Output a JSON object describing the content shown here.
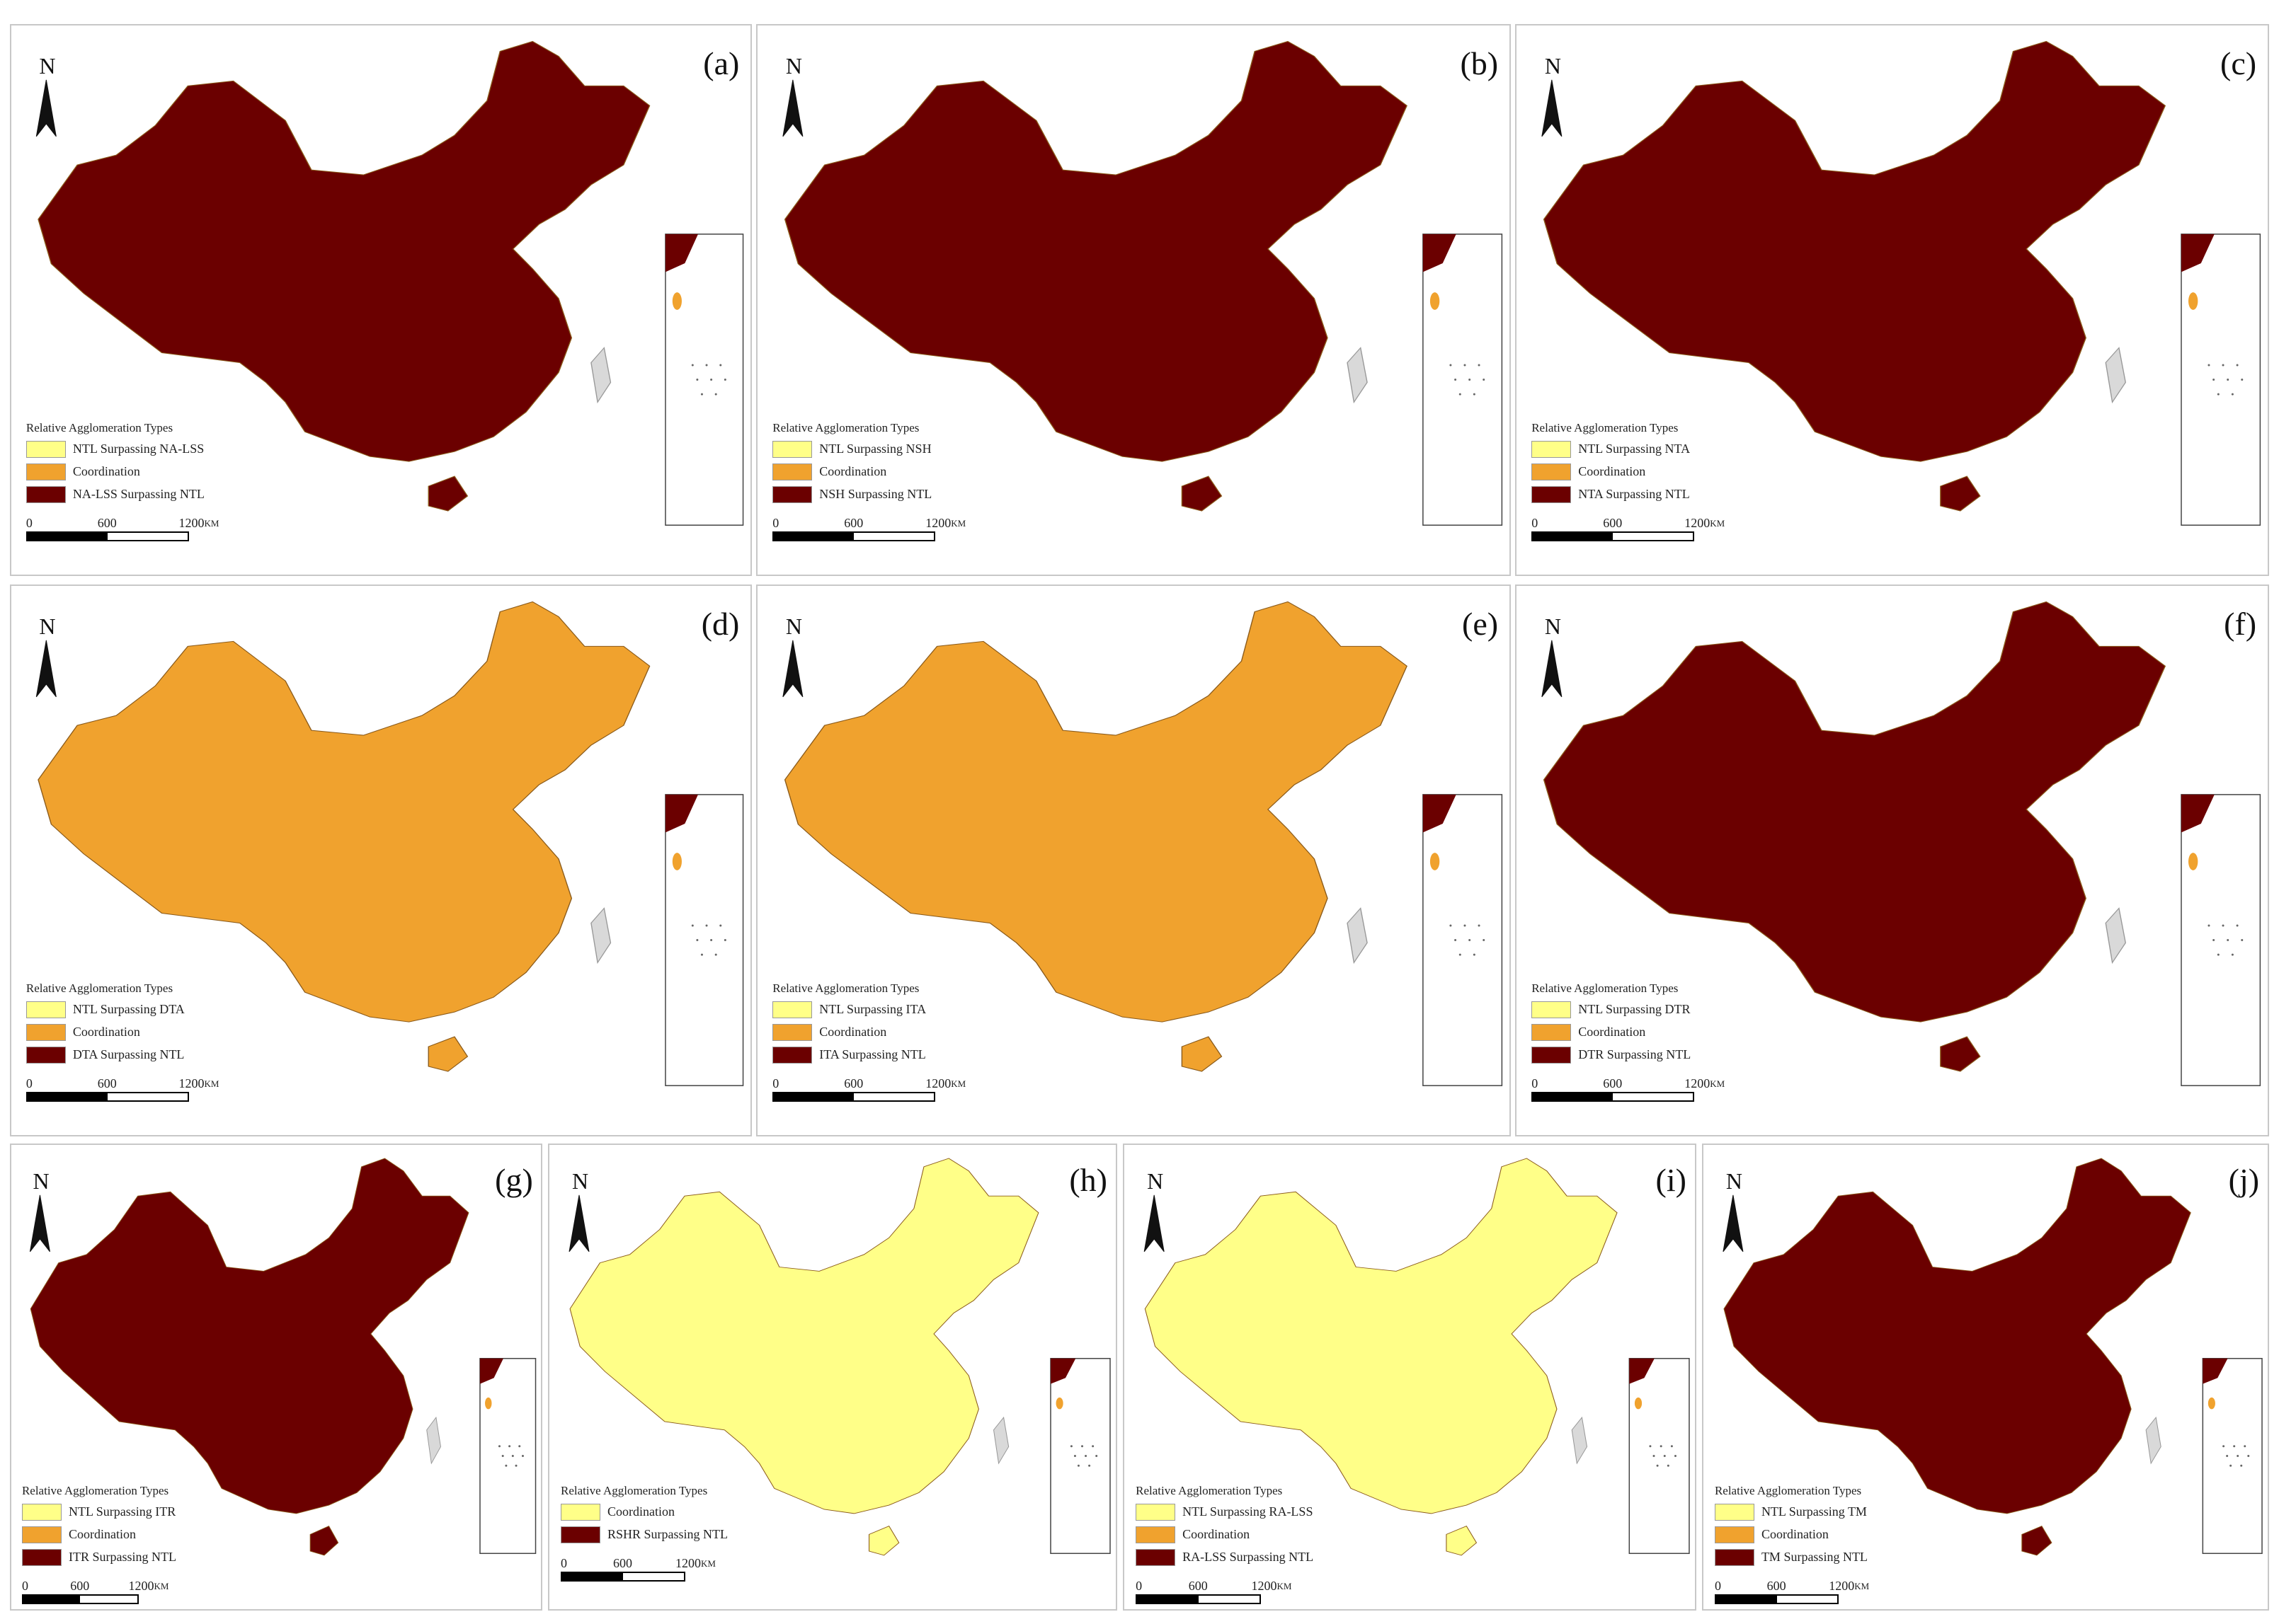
{
  "colors": {
    "light_yellow": "#FFFF88",
    "orange": "#F0A22E",
    "dark_red": "#6B0000",
    "inset_red": "#6B0000"
  },
  "north_arrow_label": "N",
  "scale_bar": {
    "tick_labels": [
      "0",
      "600",
      "1200"
    ],
    "unit": "KM"
  },
  "legend_title": "Relative Agglomeration Types",
  "panels": [
    {
      "letter": "(a)",
      "map_color": "dark_red",
      "legend": [
        {
          "label": "NTL Surpassing NA-LSS",
          "color": "light_yellow"
        },
        {
          "label": "Coordination",
          "color": "orange"
        },
        {
          "label": "NA-LSS Surpassing NTL",
          "color": "dark_red"
        }
      ]
    },
    {
      "letter": "(b)",
      "map_color": "dark_red",
      "legend": [
        {
          "label": "NTL Surpassing NSH",
          "color": "light_yellow"
        },
        {
          "label": "Coordination",
          "color": "orange"
        },
        {
          "label": "NSH Surpassing NTL",
          "color": "dark_red"
        }
      ]
    },
    {
      "letter": "(c)",
      "map_color": "dark_red",
      "legend": [
        {
          "label": "NTL Surpassing NTA",
          "color": "light_yellow"
        },
        {
          "label": "Coordination",
          "color": "orange"
        },
        {
          "label": "NTA Surpassing NTL",
          "color": "dark_red"
        }
      ]
    },
    {
      "letter": "(d)",
      "map_color": "orange",
      "legend": [
        {
          "label": "NTL Surpassing DTA",
          "color": "light_yellow"
        },
        {
          "label": "Coordination",
          "color": "orange"
        },
        {
          "label": "DTA Surpassing NTL",
          "color": "dark_red"
        }
      ]
    },
    {
      "letter": "(e)",
      "map_color": "orange",
      "legend": [
        {
          "label": "NTL Surpassing ITA",
          "color": "light_yellow"
        },
        {
          "label": "Coordination",
          "color": "orange"
        },
        {
          "label": "ITA Surpassing NTL",
          "color": "dark_red"
        }
      ]
    },
    {
      "letter": "(f)",
      "map_color": "dark_red",
      "legend": [
        {
          "label": "NTL Surpassing DTR",
          "color": "light_yellow"
        },
        {
          "label": "Coordination",
          "color": "orange"
        },
        {
          "label": "DTR Surpassing NTL",
          "color": "dark_red"
        }
      ]
    },
    {
      "letter": "(g)",
      "map_color": "dark_red",
      "legend": [
        {
          "label": "NTL Surpassing ITR",
          "color": "light_yellow"
        },
        {
          "label": "Coordination",
          "color": "orange"
        },
        {
          "label": "ITR Surpassing NTL",
          "color": "dark_red"
        }
      ]
    },
    {
      "letter": "(h)",
      "map_color": "light_yellow",
      "legend": [
        {
          "label": "Coordination",
          "color": "light_yellow"
        },
        {
          "label": "RSHR Surpassing NTL",
          "color": "dark_red"
        }
      ]
    },
    {
      "letter": "(i)",
      "map_color": "light_yellow",
      "legend": [
        {
          "label": "NTL Surpassing RA-LSS",
          "color": "light_yellow"
        },
        {
          "label": "Coordination",
          "color": "orange"
        },
        {
          "label": "RA-LSS Surpassing NTL",
          "color": "dark_red"
        }
      ]
    },
    {
      "letter": "(j)",
      "map_color": "dark_red",
      "legend": [
        {
          "label": "NTL Surpassing TM",
          "color": "light_yellow"
        },
        {
          "label": "Coordination",
          "color": "orange"
        },
        {
          "label": "TM Surpassing NTL",
          "color": "dark_red"
        }
      ]
    }
  ]
}
